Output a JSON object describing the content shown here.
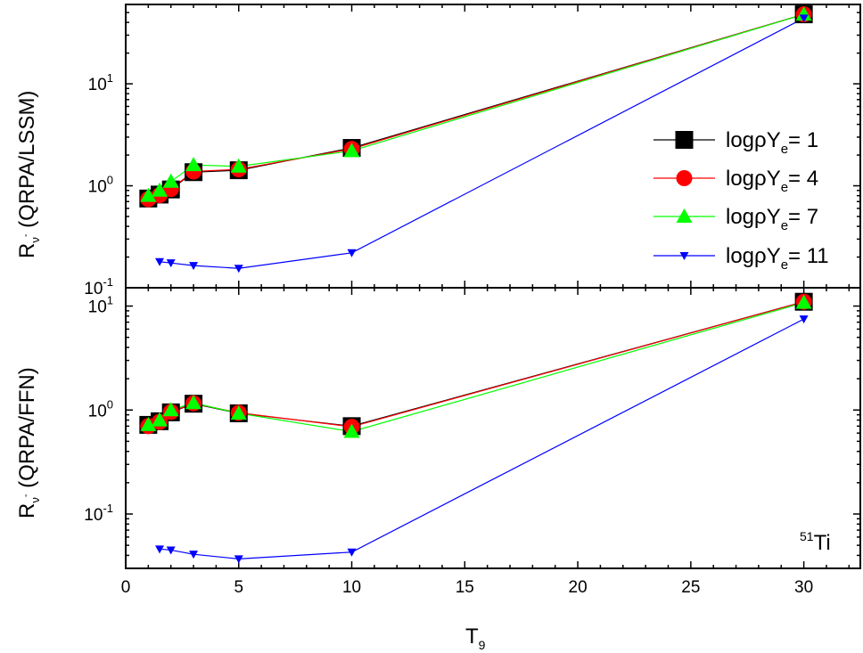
{
  "chart_data": {
    "type": "line",
    "x_axis": {
      "label": "T",
      "label_sub": "9",
      "lim": [
        0,
        32.5
      ],
      "ticks": [
        0,
        5,
        10,
        15,
        20,
        25,
        30
      ],
      "tick_labels": [
        "0",
        "5",
        "10",
        "15",
        "20",
        "25",
        "30"
      ]
    },
    "series_style": [
      {
        "color": "#000000",
        "marker": "square"
      },
      {
        "color": "#ff0000",
        "marker": "circle"
      },
      {
        "color": "#00ff00",
        "marker": "triangle-up"
      },
      {
        "color": "#0000ff",
        "marker": "triangle-down"
      }
    ],
    "legend": {
      "placement": "right",
      "entries": [
        {
          "pre": "log",
          "rho": "ρ",
          "Y": "Y",
          "sub": "e",
          "post": "= 1"
        },
        {
          "pre": "log",
          "rho": "ρ",
          "Y": "Y",
          "sub": "e",
          "post": "= 4"
        },
        {
          "pre": "log",
          "rho": "ρ",
          "Y": "Y",
          "sub": "e",
          "post": "= 7"
        },
        {
          "pre": "log",
          "rho": "ρ",
          "Y": "Y",
          "sub": "e",
          "post": "= 11"
        }
      ]
    },
    "annotation": {
      "sup": "51",
      "text": "Ti"
    },
    "panels": [
      {
        "ylabel_main": "R",
        "ylabel_sub": "ν",
        "ylabel_sup": "-",
        "ylabel_rest": " (QRPA/LSSM)",
        "yscale": "log",
        "ylim": [
          0.1,
          60
        ],
        "yticks": [
          0.1,
          1,
          10
        ],
        "ytick_labels": [
          {
            "base": "10",
            "exp": "-1"
          },
          {
            "base": "10",
            "exp": "0"
          },
          {
            "base": "10",
            "exp": "1"
          }
        ],
        "series": [
          {
            "x": [
              1,
              1.5,
              2,
              3,
              5,
              10,
              30
            ],
            "y": [
              0.75,
              0.82,
              0.92,
              1.36,
              1.42,
              2.35,
              48
            ]
          },
          {
            "x": [
              1,
              1.5,
              2,
              3,
              5,
              10,
              30
            ],
            "y": [
              0.74,
              0.81,
              0.93,
              1.38,
              1.45,
              2.3,
              48
            ]
          },
          {
            "x": [
              1,
              1.5,
              2,
              3,
              5,
              10,
              30
            ],
            "y": [
              0.8,
              0.9,
              1.1,
              1.6,
              1.55,
              2.2,
              48
            ]
          },
          {
            "x": [
              1.5,
              2,
              3,
              5,
              10,
              30
            ],
            "y": [
              0.18,
              0.175,
              0.165,
              0.155,
              0.22,
              44
            ]
          }
        ]
      },
      {
        "ylabel_main": "R",
        "ylabel_sub": "ν",
        "ylabel_sup": "-",
        "ylabel_rest": " (QRPA/FFN)",
        "yscale": "log",
        "ylim": [
          0.03,
          15
        ],
        "yticks": [
          0.1,
          1,
          10
        ],
        "ytick_labels": [
          {
            "base": "10",
            "exp": "-1"
          },
          {
            "base": "10",
            "exp": "0"
          },
          {
            "base": "10",
            "exp": "1"
          }
        ],
        "series": [
          {
            "x": [
              1,
              1.5,
              2,
              3,
              5,
              10,
              30
            ],
            "y": [
              0.72,
              0.78,
              0.95,
              1.15,
              0.93,
              0.7,
              11
            ]
          },
          {
            "x": [
              1,
              1.5,
              2,
              3,
              5,
              10,
              30
            ],
            "y": [
              0.7,
              0.77,
              0.96,
              1.16,
              0.94,
              0.69,
              11
            ]
          },
          {
            "x": [
              1,
              1.5,
              2,
              3,
              5,
              10,
              30
            ],
            "y": [
              0.72,
              0.8,
              1.0,
              1.17,
              0.93,
              0.62,
              10.8
            ]
          },
          {
            "x": [
              1.5,
              2,
              3,
              5,
              10,
              30
            ],
            "y": [
              0.046,
              0.045,
              0.041,
              0.037,
              0.043,
              7.5
            ]
          }
        ]
      }
    ]
  }
}
